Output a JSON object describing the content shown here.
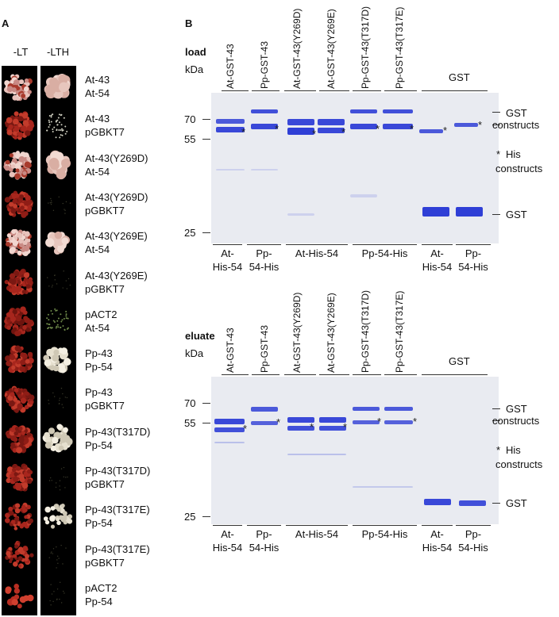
{
  "panel_a": {
    "letter": "A",
    "col_lt": "-LT",
    "col_lth": "-LTH",
    "rows": [
      {
        "line1": "At-43",
        "line2": "At-54",
        "lt": "pinkmix",
        "lth": "pink"
      },
      {
        "line1": "At-43",
        "line2": "pGBKT7",
        "lt": "red",
        "lth": "specks"
      },
      {
        "line1": "At-43(Y269D)",
        "line2": "At-54",
        "lt": "pinkmix",
        "lth": "pink"
      },
      {
        "line1": "At-43(Y269D)",
        "line2": "pGBKT7",
        "lt": "red",
        "lth": "faint"
      },
      {
        "line1": "At-43(Y269E)",
        "line2": "At-54",
        "lt": "pinkmix",
        "lth": "pinksmall"
      },
      {
        "line1": "At-43(Y269E)",
        "line2": "pGBKT7",
        "lt": "red",
        "lth": "faint"
      },
      {
        "line1": "pACT2",
        "line2": "At-54",
        "lt": "darkred",
        "lth": "specksgreen"
      },
      {
        "line1": "Pp-43",
        "line2": "Pp-54",
        "lt": "red",
        "lth": "white"
      },
      {
        "line1": "Pp-43",
        "line2": "pGBKT7",
        "lt": "red",
        "lth": "faint"
      },
      {
        "line1": "Pp-43(T317D)",
        "line2": "Pp-54",
        "lt": "red",
        "lth": "white"
      },
      {
        "line1": "Pp-43(T317D)",
        "line2": "pGBKT7",
        "lt": "red",
        "lth": "faint"
      },
      {
        "line1": "Pp-43(T317E)",
        "line2": "Pp-54",
        "lt": "redsparse",
        "lth": "whitesmall"
      },
      {
        "line1": "Pp-43(T317E)",
        "line2": "pGBKT7",
        "lt": "redsparse",
        "lth": "faint"
      },
      {
        "line1": "pACT2",
        "line2": "Pp-54",
        "lt": "redfew",
        "lth": "faint"
      }
    ]
  },
  "panel_b": {
    "letter": "B",
    "load": {
      "title": "load",
      "unit": "kDa",
      "lanes": [
        "At-GST-43",
        "Pp-GST-43",
        "At-GST-43(Y269D)",
        "At-GST-43(Y269E)",
        "Pp-GST-43(T317D)",
        "Pp-GST-43(T317E)",
        "GST"
      ],
      "markers": [
        "70",
        "55",
        "25"
      ],
      "bottom_groups": [
        {
          "l1": "At-",
          "l2": "His-54"
        },
        {
          "l1": "Pp-",
          "l2": "54-His"
        },
        {
          "l1": "At-His-54",
          "l2": ""
        },
        {
          "l1": "Pp-54-His",
          "l2": ""
        },
        {
          "l1": "At-",
          "l2": "His-54"
        },
        {
          "l1": "Pp-",
          "l2": "54-His"
        }
      ]
    },
    "eluate": {
      "title": "eluate",
      "unit": "kDa",
      "lanes": [
        "At-GST-43",
        "Pp-GST-43",
        "At-GST-43(Y269D)",
        "At-GST-43(Y269E)",
        "Pp-GST-43(T317D)",
        "Pp-GST-43(T317E)",
        "GST"
      ],
      "markers": [
        "70",
        "55",
        "25"
      ],
      "bottom_groups": [
        {
          "l1": "At-",
          "l2": "His-54"
        },
        {
          "l1": "Pp-",
          "l2": "54-His"
        },
        {
          "l1": "At-His-54",
          "l2": ""
        },
        {
          "l1": "Pp-54-His",
          "l2": ""
        },
        {
          "l1": "At-",
          "l2": "His-54"
        },
        {
          "l1": "Pp-",
          "l2": "54-His"
        }
      ]
    },
    "right_labels": {
      "gst_top": "GST",
      "constructs": "constructs",
      "his_star": "*",
      "his": "His",
      "his_constructs": "constructs",
      "gst_bottom": "GST"
    },
    "star": "*",
    "band_color": "#2f3fd6"
  }
}
